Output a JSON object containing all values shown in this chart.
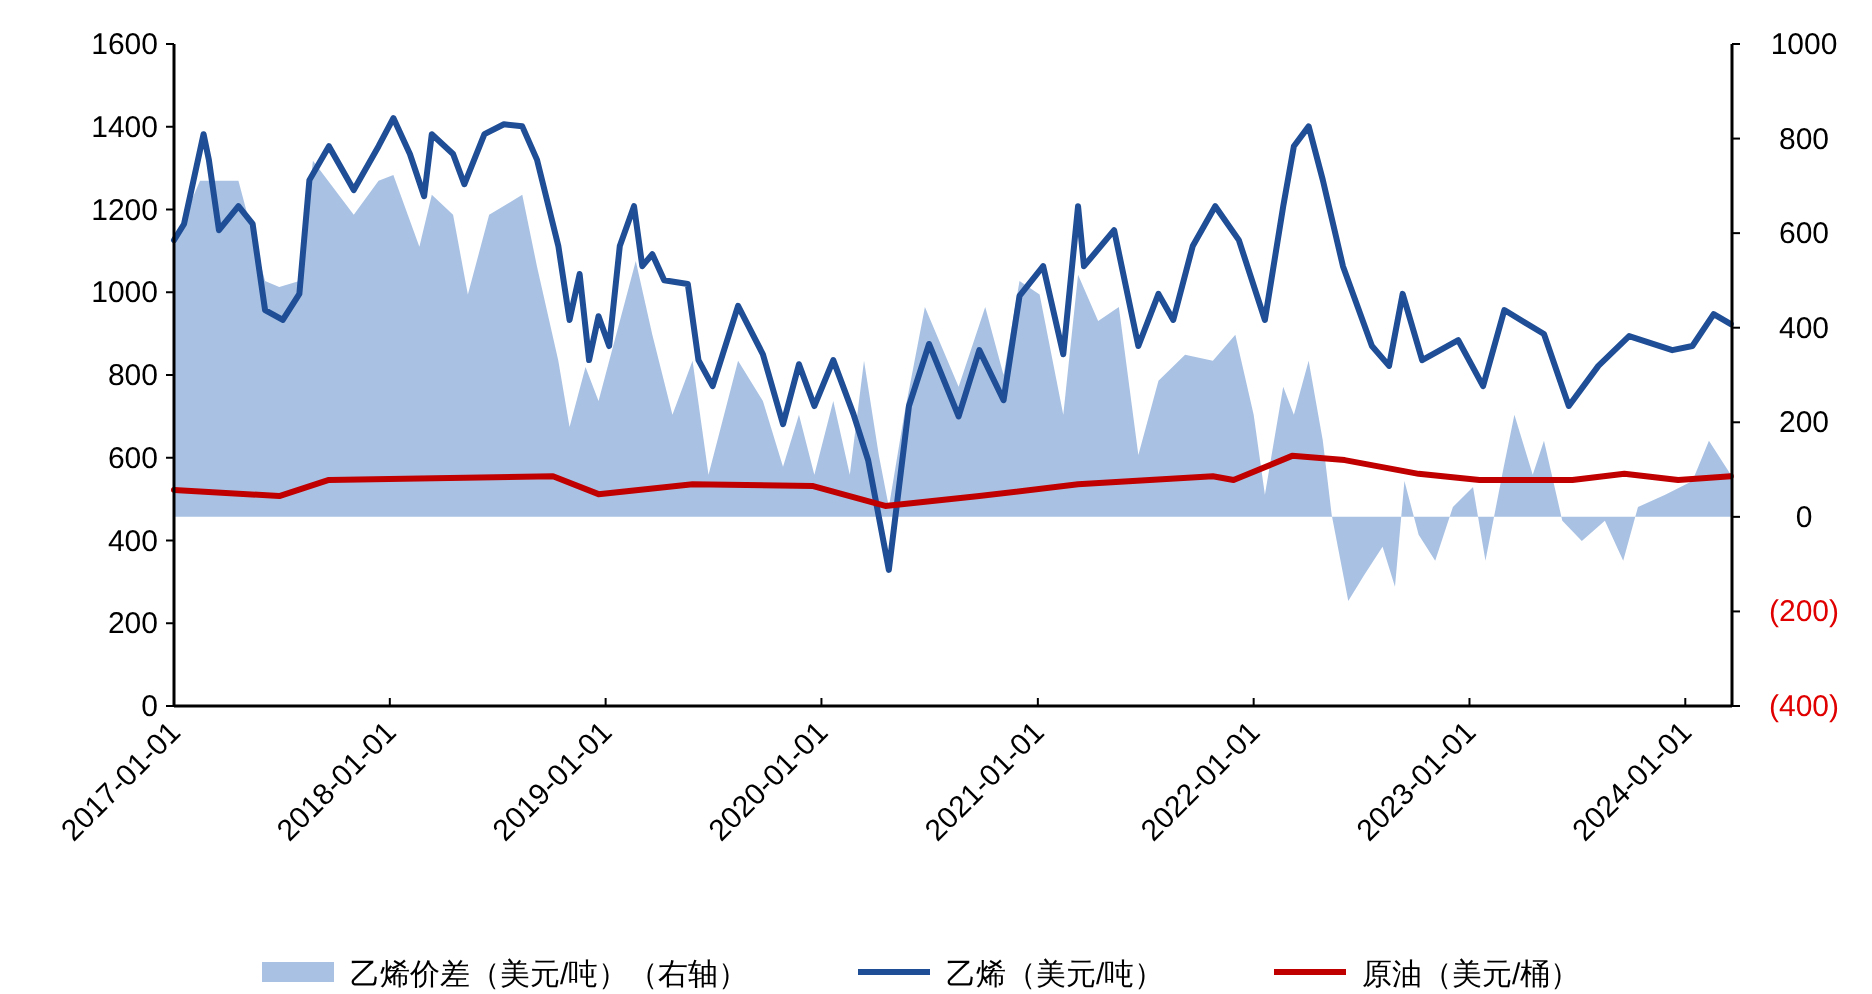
{
  "chart_data": {
    "type": "line",
    "xlim": [
      "2017-01-01",
      "2024-03-20"
    ],
    "xticks": [
      "2017-01-01",
      "2018-01-01",
      "2019-01-01",
      "2020-01-01",
      "2021-01-01",
      "2022-01-01",
      "2023-01-01",
      "2024-01-01"
    ],
    "ylim": [
      0,
      1600
    ],
    "yticks": [
      0,
      200,
      400,
      600,
      800,
      1000,
      1200,
      1400,
      1600
    ],
    "y2lim": [
      -400,
      1000
    ],
    "y2ticks": [
      {
        "value": -400,
        "label": "(400)"
      },
      {
        "value": -200,
        "label": "(200)"
      },
      0,
      200,
      400,
      600,
      800,
      1000
    ],
    "grid": false,
    "legend": "bottom",
    "series": [
      {
        "name": "乙烯价差（美元/吨）（右轴）",
        "type": "area",
        "axis": "y2",
        "color": "#a9c2e4",
        "x": [
          "2017-01-01",
          "2017-02-14",
          "2017-04-20",
          "2017-06-04",
          "2017-06-28",
          "2017-08-01",
          "2017-08-24",
          "2017-11-01",
          "2017-12-13",
          "2018-01-07",
          "2018-02-20",
          "2018-03-13",
          "2018-04-18",
          "2018-05-13",
          "2018-06-18",
          "2018-08-13",
          "2018-09-07",
          "2018-10-13",
          "2018-11-01",
          "2018-11-28",
          "2018-12-20",
          "2019-02-21",
          "2019-03-21",
          "2019-04-24",
          "2019-05-28",
          "2019-06-24",
          "2019-08-13",
          "2019-09-24",
          "2019-10-28",
          "2019-11-24",
          "2019-12-20",
          "2020-01-21",
          "2020-02-18",
          "2020-03-13",
          "2020-04-07",
          "2020-04-24",
          "2020-05-20",
          "2020-06-24",
          "2020-08-20",
          "2020-10-04",
          "2020-11-04",
          "2020-12-01",
          "2021-01-04",
          "2021-02-13",
          "2021-03-10",
          "2021-04-13",
          "2021-05-18",
          "2021-06-20",
          "2021-07-24",
          "2021-09-07",
          "2021-10-24",
          "2021-12-01",
          "2022-01-01",
          "2022-01-20",
          "2022-02-20",
          "2022-03-10",
          "2022-04-04",
          "2022-04-28",
          "2022-05-13",
          "2022-06-10",
          "2022-07-07",
          "2022-08-07",
          "2022-08-28",
          "2022-09-13",
          "2022-10-07",
          "2022-11-04",
          "2022-12-04",
          "2023-01-07",
          "2023-01-28",
          "2023-02-28",
          "2023-03-18",
          "2023-04-18",
          "2023-05-07",
          "2023-06-07",
          "2023-07-10",
          "2023-08-18",
          "2023-09-18",
          "2023-10-13",
          "2023-11-28",
          "2024-01-13",
          "2024-02-10",
          "2024-03-18"
        ],
        "values": [
          584,
          711,
          711,
          499,
          486,
          499,
          753,
          639,
          711,
          723,
          571,
          681,
          639,
          470,
          639,
          681,
          529,
          330,
          190,
          317,
          245,
          541,
          385,
          216,
          330,
          89,
          330,
          245,
          106,
          216,
          89,
          245,
          89,
          330,
          131,
          21,
          216,
          444,
          275,
          444,
          300,
          499,
          470,
          216,
          512,
          414,
          444,
          131,
          288,
          343,
          330,
          385,
          216,
          47,
          275,
          216,
          330,
          161,
          4,
          -178,
          -123,
          -63,
          -148,
          76,
          -38,
          -93,
          21,
          63,
          -93,
          106,
          216,
          89,
          161,
          -8,
          -51,
          -8,
          -93,
          21,
          47,
          76,
          161,
          89
        ]
      },
      {
        "name": "乙烯（美元/吨）",
        "axis": "y",
        "color": "#1f4e96",
        "x": [
          "2017-01-01",
          "2017-01-18",
          "2017-02-20",
          "2017-03-01",
          "2017-03-18",
          "2017-04-20",
          "2017-05-14",
          "2017-06-04",
          "2017-07-04",
          "2017-08-01",
          "2017-08-18",
          "2017-09-20",
          "2017-11-01",
          "2017-12-13",
          "2018-01-07",
          "2018-02-04",
          "2018-02-28",
          "2018-03-13",
          "2018-04-18",
          "2018-05-07",
          "2018-06-10",
          "2018-07-13",
          "2018-08-13",
          "2018-09-07",
          "2018-10-13",
          "2018-11-01",
          "2018-11-18",
          "2018-12-04",
          "2018-12-20",
          "2019-01-07",
          "2019-01-25",
          "2019-02-18",
          "2019-03-04",
          "2019-03-21",
          "2019-04-10",
          "2019-05-20",
          "2019-06-07",
          "2019-07-01",
          "2019-08-13",
          "2019-09-24",
          "2019-10-28",
          "2019-11-24",
          "2019-12-20",
          "2020-01-21",
          "2020-02-24",
          "2020-03-20",
          "2020-04-24",
          "2020-05-28",
          "2020-07-01",
          "2020-08-20",
          "2020-09-24",
          "2020-11-04",
          "2020-12-01",
          "2021-01-10",
          "2021-02-13",
          "2021-03-10",
          "2021-03-20",
          "2021-05-10",
          "2021-06-20",
          "2021-07-24",
          "2021-08-18",
          "2021-09-20",
          "2021-10-28",
          "2021-12-07",
          "2022-01-20",
          "2022-02-20",
          "2022-03-10",
          "2022-04-04",
          "2022-04-28",
          "2022-06-01",
          "2022-07-20",
          "2022-08-18",
          "2022-09-10",
          "2022-10-13",
          "2022-12-13",
          "2023-01-24",
          "2023-03-01",
          "2023-05-07",
          "2023-06-18",
          "2023-08-07",
          "2023-09-28",
          "2023-12-10",
          "2024-01-13",
          "2024-02-18",
          "2024-03-18"
        ],
        "values": [
          1126,
          1165,
          1382,
          1320,
          1150,
          1208,
          1165,
          957,
          933,
          996,
          1271,
          1353,
          1247,
          1353,
          1421,
          1334,
          1232,
          1382,
          1334,
          1261,
          1382,
          1406,
          1401,
          1320,
          1112,
          933,
          1044,
          836,
          942,
          870,
          1112,
          1208,
          1063,
          1092,
          1029,
          1020,
          836,
          773,
          967,
          850,
          681,
          826,
          725,
          836,
          706,
          594,
          329,
          725,
          875,
          700,
          860,
          739,
          991,
          1063,
          850,
          1208,
          1063,
          1150,
          870,
          996,
          933,
          1112,
          1208,
          1126,
          933,
          1208,
          1353,
          1401,
          1271,
          1063,
          870,
          822,
          996,
          836,
          884,
          773,
          957,
          899,
          725,
          822,
          894,
          860,
          870,
          947,
          923
        ]
      },
      {
        "name": "原油（美元/桶）",
        "axis": "y2",
        "color": "#c00000",
        "x": [
          "2017-01-01",
          "2017-06-28",
          "2017-09-20",
          "2018-10-04",
          "2018-12-20",
          "2019-05-28",
          "2019-12-18",
          "2020-04-18",
          "2020-09-24",
          "2021-03-10",
          "2021-10-24",
          "2021-11-28",
          "2022-03-07",
          "2022-06-04",
          "2022-10-07",
          "2023-01-18",
          "2023-06-24",
          "2023-09-20",
          "2023-12-20",
          "2024-03-18"
        ],
        "values": [
          57,
          44,
          78,
          86,
          48,
          69,
          65,
          23,
          44,
          69,
          86,
          78,
          129,
          120,
          91,
          78,
          78,
          91,
          78,
          86
        ]
      }
    ]
  }
}
